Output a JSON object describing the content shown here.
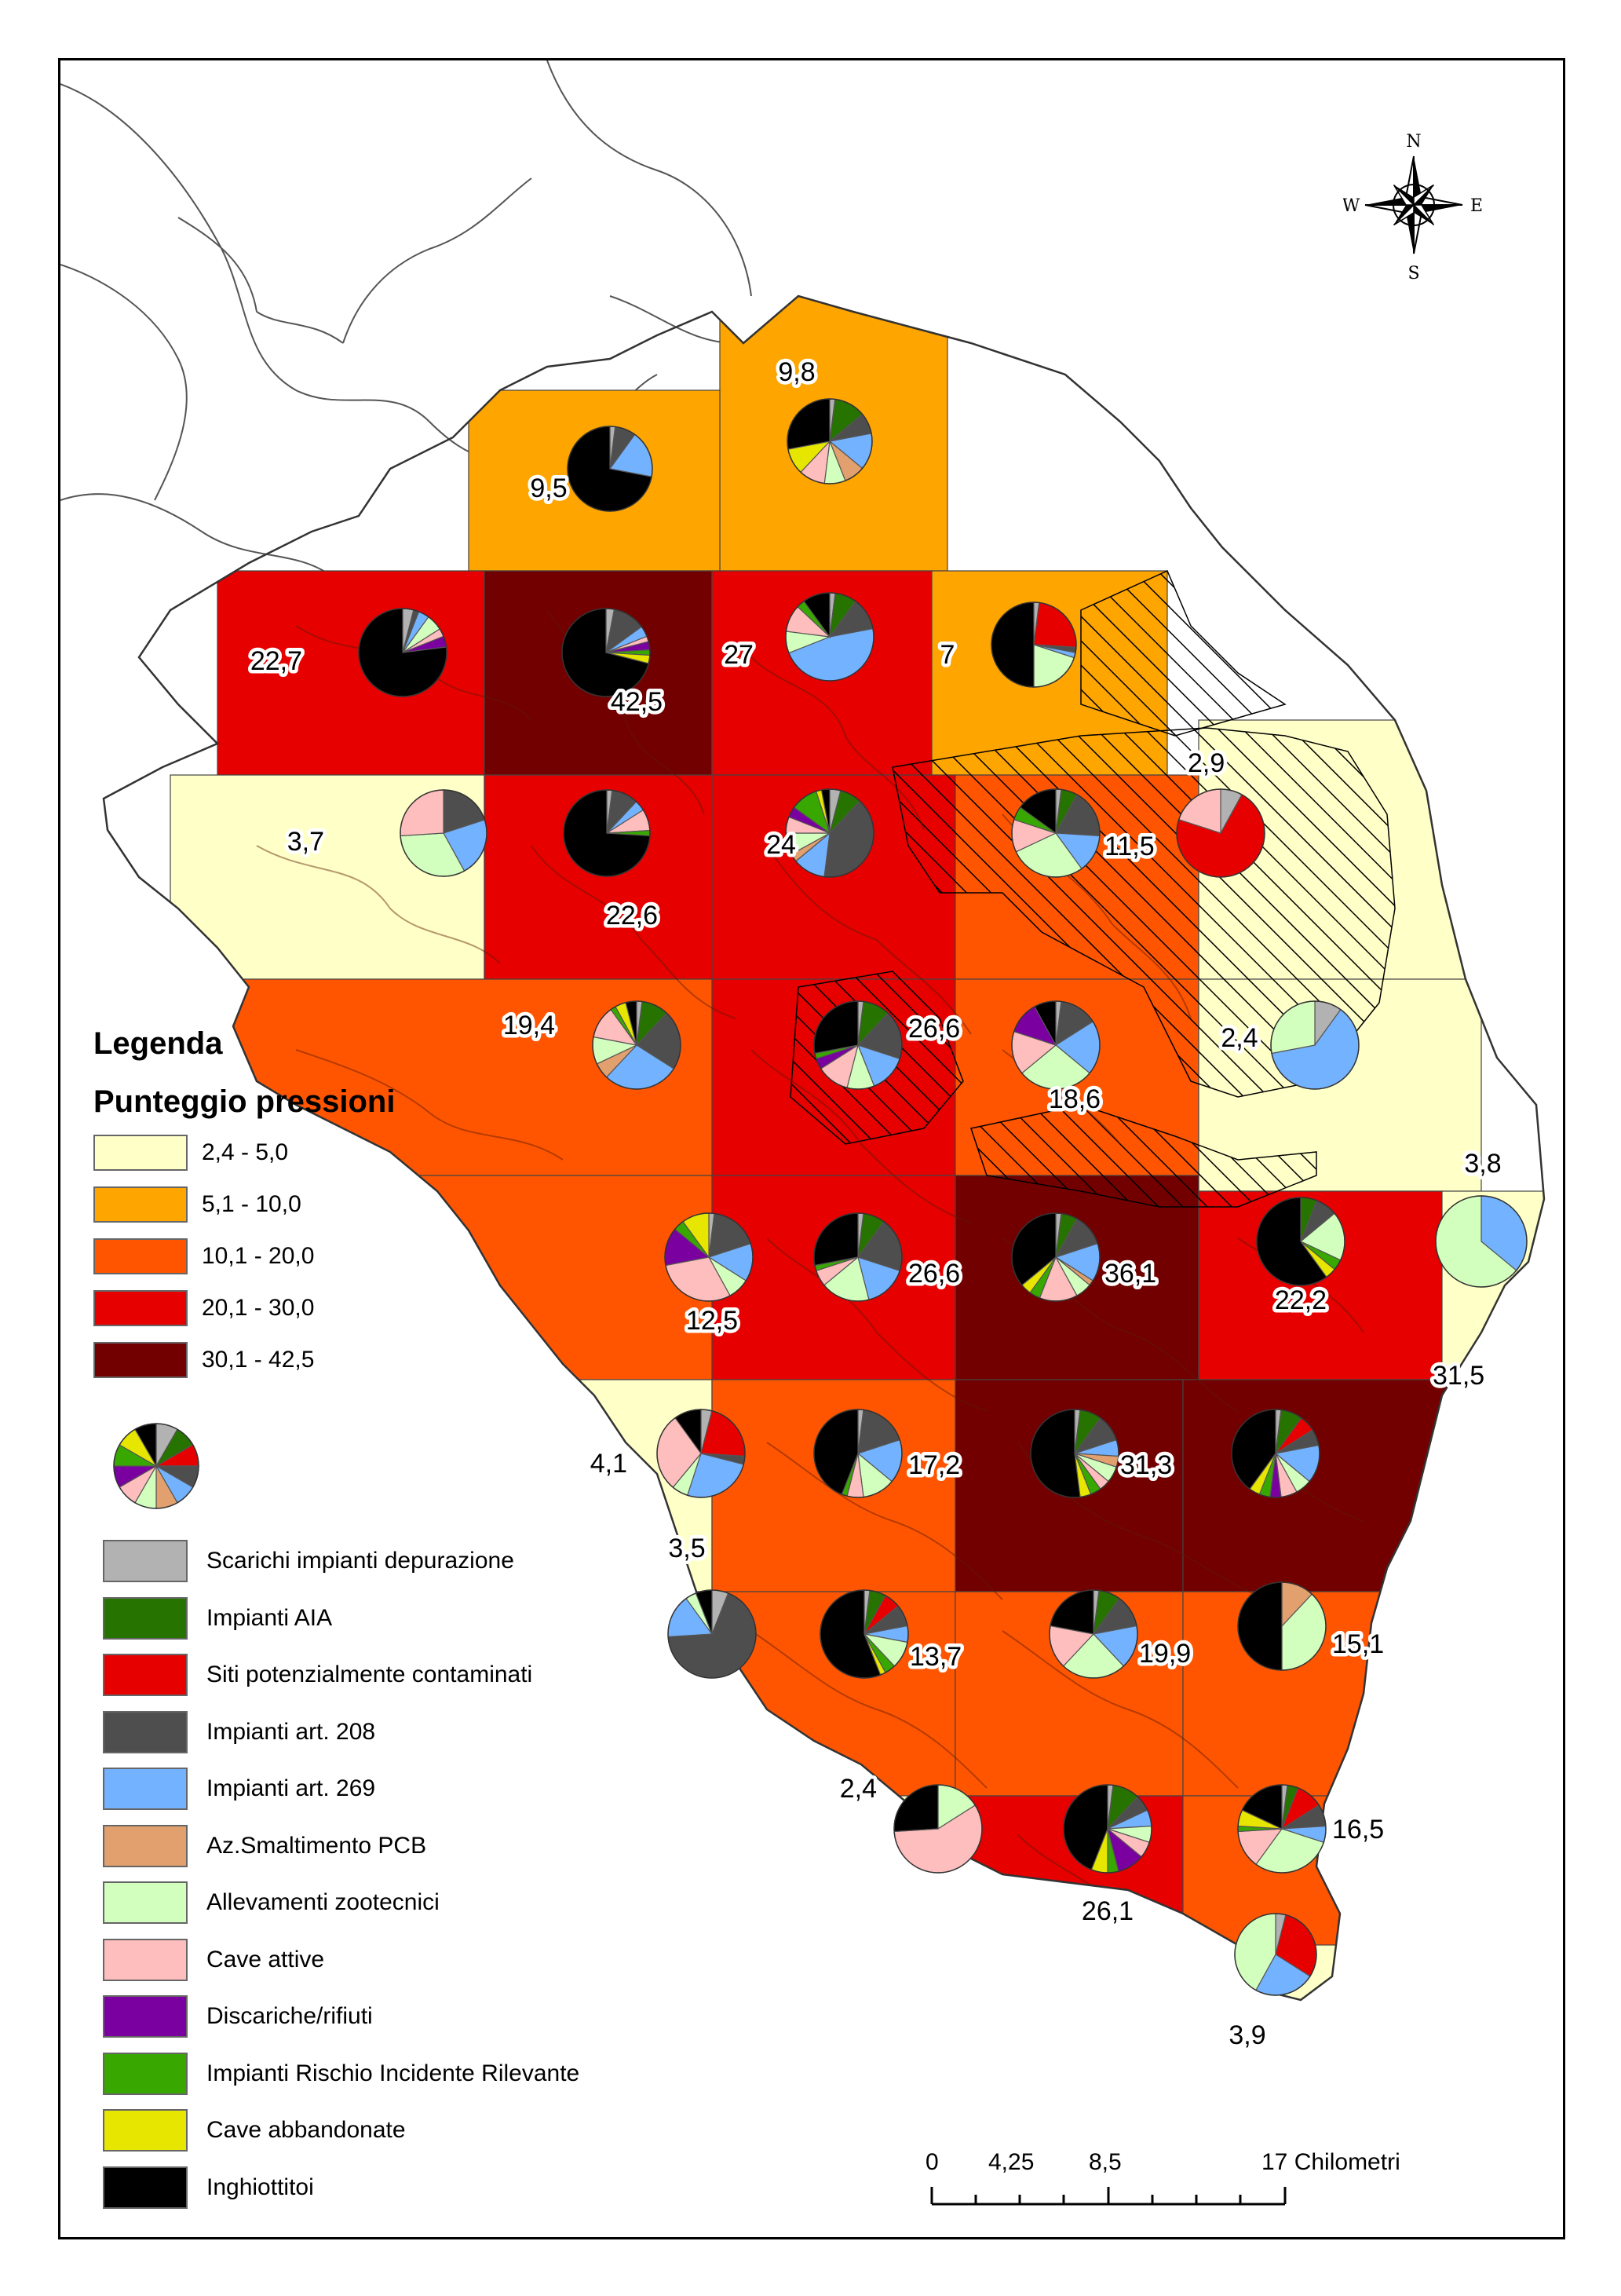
{
  "legend": {
    "title": "Legenda",
    "subtitle": "Punteggio pressioni",
    "classes": [
      {
        "label": "2,4 - 5,0",
        "color": "#ffffc8"
      },
      {
        "label": "5,1 - 10,0",
        "color": "#ffa500"
      },
      {
        "label": "10,1 - 20,0",
        "color": "#ff5500"
      },
      {
        "label": "20,1 - 30,0",
        "color": "#e60000"
      },
      {
        "label": "30,1 - 42,5",
        "color": "#730000"
      }
    ],
    "categories": [
      {
        "label": "Scarichi impianti depurazione",
        "color": "#b2b2b2"
      },
      {
        "label": "Impianti AIA",
        "color": "#267300"
      },
      {
        "label": "Siti potenzialmente contaminati",
        "color": "#e60000"
      },
      {
        "label": "Impianti art. 208",
        "color": "#4e4e4e"
      },
      {
        "label": "Impianti art. 269",
        "color": "#73b2ff"
      },
      {
        "label": "Az.Smaltimento PCB",
        "color": "#e1a06e"
      },
      {
        "label": "Allevamenti zootecnici",
        "color": "#d3ffbe"
      },
      {
        "label": "Cave attive",
        "color": "#ffbebe"
      },
      {
        "label": "Discariche/rifiuti",
        "color": "#7a00a0"
      },
      {
        "label": "Impianti Rischio Incidente Rilevante",
        "color": "#38a800"
      },
      {
        "label": "Cave abbandonate",
        "color": "#e6e600"
      },
      {
        "label": "Inghiottitoi",
        "color": "#000000"
      }
    ]
  },
  "scalebar": {
    "ticks": [
      "0",
      "4,25",
      "8,5",
      "17 Chilometri"
    ]
  },
  "north_arrow": {
    "n": "N",
    "s": "S",
    "e": "E",
    "w": "W"
  },
  "cells": [
    {
      "label": "9,8",
      "class": 1
    },
    {
      "label": "9,5",
      "class": 1
    },
    {
      "label": "22,7",
      "class": 3
    },
    {
      "label": "42,5",
      "class": 4
    },
    {
      "label": "27",
      "class": 3
    },
    {
      "label": "7",
      "class": 1
    },
    {
      "label": "3,7",
      "class": 0
    },
    {
      "label": "22,6",
      "class": 3
    },
    {
      "label": "24",
      "class": 3
    },
    {
      "label": "11,5",
      "class": 2
    },
    {
      "label": "2,9",
      "class": 0
    },
    {
      "label": "19,4",
      "class": 2
    },
    {
      "label": "26,6",
      "class": 3
    },
    {
      "label": "18,6",
      "class": 2
    },
    {
      "label": "2,4",
      "class": 0
    },
    {
      "label": "12,5",
      "class": 2
    },
    {
      "label": "26,6",
      "class": 3
    },
    {
      "label": "36,1",
      "class": 4
    },
    {
      "label": "22,2",
      "class": 3
    },
    {
      "label": "3,8",
      "class": 0
    },
    {
      "label": "4,1",
      "class": 0
    },
    {
      "label": "17,2",
      "class": 2
    },
    {
      "label": "31,3",
      "class": 4
    },
    {
      "label": "31,5",
      "class": 4
    },
    {
      "label": "3,5",
      "class": 0
    },
    {
      "label": "13,7",
      "class": 2
    },
    {
      "label": "19,9",
      "class": 2
    },
    {
      "label": "15,1",
      "class": 2
    },
    {
      "label": "2,4",
      "class": 0
    },
    {
      "label": "26,1",
      "class": 3
    },
    {
      "label": "16,5",
      "class": 2
    },
    {
      "label": "3,9",
      "class": 0
    }
  ]
}
